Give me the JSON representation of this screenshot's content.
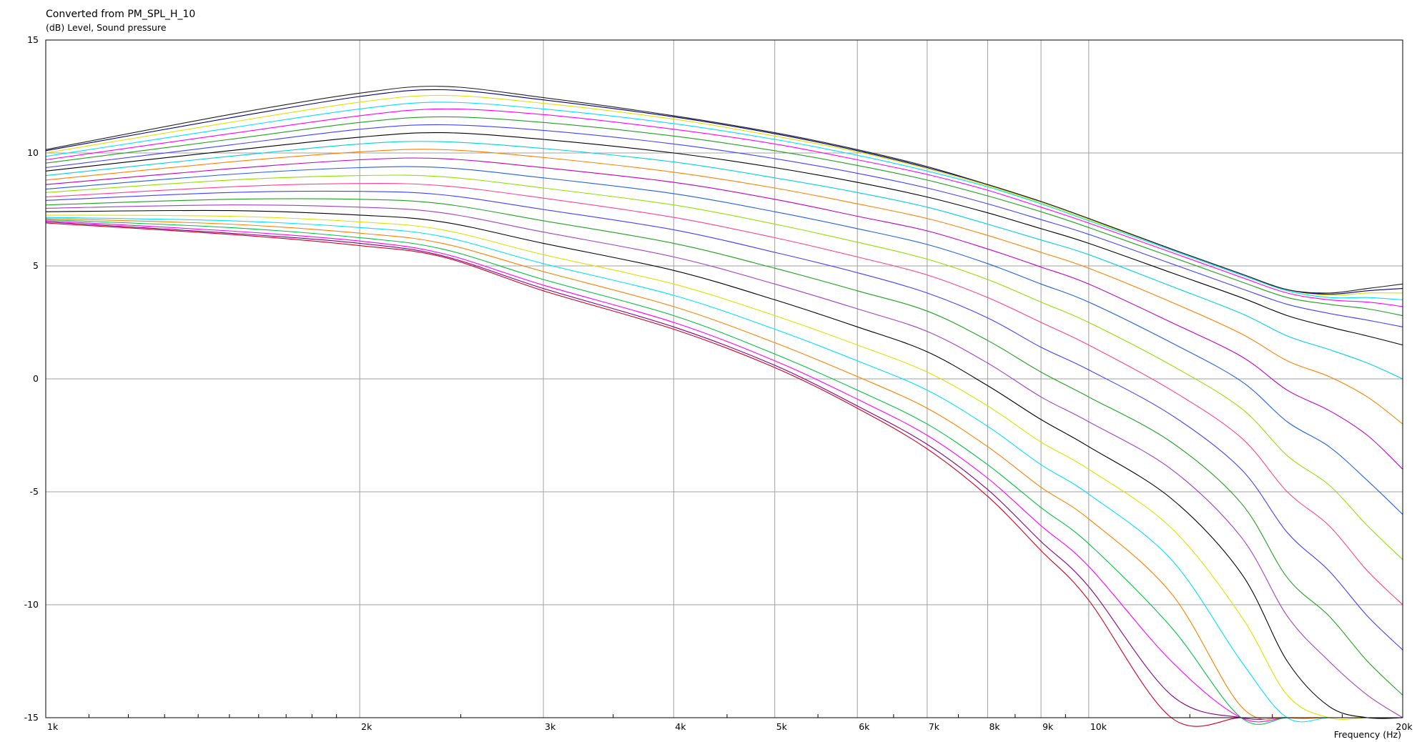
{
  "chart_data": {
    "type": "line",
    "title": "Converted from PM_SPL_H_10",
    "ylabel": "(dB)  Level, Sound pressure",
    "xlabel": "Frequency  (Hz)",
    "x_scale": "log",
    "xlim": [
      1000,
      20000
    ],
    "ylim": [
      -15,
      15
    ],
    "grid": true,
    "legend": "none",
    "x_ticks": [
      {
        "value": 1000,
        "label": "1k"
      },
      {
        "value": 2000,
        "label": "2k"
      },
      {
        "value": 3000,
        "label": "3k"
      },
      {
        "value": 4000,
        "label": "4k"
      },
      {
        "value": 5000,
        "label": "5k"
      },
      {
        "value": 6000,
        "label": "6k"
      },
      {
        "value": 7000,
        "label": "7k"
      },
      {
        "value": 8000,
        "label": "8k"
      },
      {
        "value": 9000,
        "label": "9k"
      },
      {
        "value": 10000,
        "label": "10k"
      },
      {
        "value": 20000,
        "label": "20k"
      }
    ],
    "y_ticks": [
      {
        "value": 15,
        "label": "15"
      },
      {
        "value": 10,
        "label": "10"
      },
      {
        "value": 5,
        "label": "5"
      },
      {
        "value": 0,
        "label": "0"
      },
      {
        "value": -5,
        "label": "-5"
      },
      {
        "value": -10,
        "label": "-10"
      },
      {
        "value": -15,
        "label": "-15"
      }
    ],
    "x": [
      1000,
      1500,
      2000,
      2400,
      3000,
      4000,
      5000,
      6000,
      7000,
      8000,
      9000,
      10000,
      12000,
      14000,
      15500,
      17000,
      18500,
      20000
    ],
    "series": [
      {
        "color": "#d00020",
        "values": [
          6.9,
          6.4,
          5.9,
          5.4,
          3.9,
          2.2,
          0.5,
          -1.3,
          -3.1,
          -5.2,
          -7.6,
          -9.8,
          -15.0,
          -15.0,
          -15.0,
          -15.0,
          -15.0,
          -15.0
        ]
      },
      {
        "color": "#800080",
        "values": [
          6.95,
          6.45,
          6.0,
          5.45,
          4.0,
          2.3,
          0.6,
          -1.2,
          -2.9,
          -4.9,
          -7.2,
          -9.2,
          -14.0,
          -15.0,
          -15.0,
          -15.0,
          -15.0,
          -15.0
        ]
      },
      {
        "color": "#ff00ff",
        "values": [
          7.0,
          6.55,
          6.1,
          5.55,
          4.15,
          2.5,
          0.8,
          -0.9,
          -2.5,
          -4.4,
          -6.5,
          -8.3,
          -12.5,
          -15.0,
          -15.0,
          -15.0,
          -15.0,
          -15.0
        ]
      },
      {
        "color": "#00c040",
        "values": [
          7.05,
          6.7,
          6.25,
          5.75,
          4.4,
          2.8,
          1.1,
          -0.5,
          -2.0,
          -3.8,
          -5.7,
          -7.3,
          -11.0,
          -15.0,
          -15.0,
          -15.0,
          -15.0,
          -15.0
        ]
      },
      {
        "color": "#ff8000",
        "values": [
          7.1,
          6.85,
          6.45,
          6.0,
          4.75,
          3.2,
          1.6,
          0.1,
          -1.3,
          -3.0,
          -4.8,
          -6.2,
          -9.5,
          -14.5,
          -15.0,
          -15.0,
          -15.0,
          -15.0
        ]
      },
      {
        "color": "#00e0ff",
        "values": [
          7.15,
          7.0,
          6.7,
          6.3,
          5.1,
          3.7,
          2.2,
          0.8,
          -0.5,
          -2.1,
          -3.8,
          -5.1,
          -8.0,
          -12.5,
          -15.0,
          -15.0,
          -15.0,
          -15.0
        ]
      },
      {
        "color": "#e0e000",
        "values": [
          7.25,
          7.2,
          6.95,
          6.6,
          5.5,
          4.2,
          2.8,
          1.5,
          0.3,
          -1.2,
          -2.8,
          -4.0,
          -6.6,
          -10.5,
          -14.0,
          -15.0,
          -15.0,
          -15.0
        ]
      },
      {
        "color": "#000000",
        "values": [
          7.4,
          7.45,
          7.25,
          6.95,
          6.0,
          4.8,
          3.5,
          2.3,
          1.2,
          -0.3,
          -1.8,
          -3.0,
          -5.3,
          -8.6,
          -12.5,
          -14.5,
          -15.0,
          -15.0
        ]
      },
      {
        "color": "#a040c0",
        "values": [
          7.55,
          7.7,
          7.6,
          7.35,
          6.5,
          5.4,
          4.2,
          3.1,
          2.1,
          0.7,
          -0.8,
          -1.9,
          -4.0,
          -7.0,
          -10.5,
          -12.5,
          -14.0,
          -15.0
        ]
      },
      {
        "color": "#20a020",
        "values": [
          7.7,
          7.95,
          7.95,
          7.75,
          7.0,
          6.0,
          4.9,
          3.9,
          3.0,
          1.7,
          0.3,
          -0.8,
          -2.8,
          -5.5,
          -8.8,
          -10.5,
          -12.5,
          -14.0
        ]
      },
      {
        "color": "#4040ff",
        "values": [
          7.9,
          8.25,
          8.3,
          8.15,
          7.5,
          6.6,
          5.6,
          4.7,
          3.8,
          2.7,
          1.4,
          0.4,
          -1.6,
          -4.0,
          -6.8,
          -8.5,
          -10.5,
          -12.0
        ]
      },
      {
        "color": "#ff4090",
        "values": [
          8.05,
          8.5,
          8.65,
          8.55,
          8.0,
          7.15,
          6.25,
          5.4,
          4.6,
          3.6,
          2.5,
          1.5,
          -0.5,
          -2.6,
          -5.0,
          -6.5,
          -8.5,
          -10.0
        ]
      },
      {
        "color": "#90e000",
        "values": [
          8.25,
          8.8,
          9.0,
          8.95,
          8.45,
          7.7,
          6.85,
          6.05,
          5.3,
          4.4,
          3.4,
          2.5,
          0.6,
          -1.3,
          -3.4,
          -4.7,
          -6.5,
          -8.0
        ]
      },
      {
        "color": "#2060e0",
        "values": [
          8.4,
          9.05,
          9.35,
          9.35,
          8.9,
          8.2,
          7.4,
          6.65,
          5.95,
          5.1,
          4.2,
          3.4,
          1.6,
          -0.1,
          -1.9,
          -3.0,
          -4.5,
          -6.0
        ]
      },
      {
        "color": "#c000c0",
        "values": [
          8.6,
          9.3,
          9.7,
          9.75,
          9.35,
          8.7,
          7.95,
          7.2,
          6.55,
          5.75,
          4.95,
          4.2,
          2.5,
          1.0,
          -0.5,
          -1.4,
          -2.5,
          -4.0
        ]
      },
      {
        "color": "#ff8000",
        "values": [
          8.8,
          9.6,
          10.05,
          10.15,
          9.8,
          9.15,
          8.45,
          7.75,
          7.1,
          6.35,
          5.6,
          4.9,
          3.4,
          2.0,
          0.8,
          0.1,
          -0.8,
          -2.0
        ]
      },
      {
        "color": "#00d0e0",
        "values": [
          9.0,
          9.85,
          10.4,
          10.5,
          10.2,
          9.6,
          8.9,
          8.25,
          7.6,
          6.85,
          6.15,
          5.5,
          4.1,
          2.9,
          1.9,
          1.3,
          0.7,
          0.0
        ]
      },
      {
        "color": "#000000",
        "values": [
          9.2,
          10.1,
          10.7,
          10.9,
          10.6,
          10.0,
          9.35,
          8.7,
          8.05,
          7.35,
          6.65,
          6.0,
          4.7,
          3.6,
          2.8,
          2.3,
          1.9,
          1.5
        ]
      },
      {
        "color": "#4040ff",
        "values": [
          9.35,
          10.35,
          11.05,
          11.25,
          11.0,
          10.4,
          9.75,
          9.1,
          8.45,
          7.75,
          7.05,
          6.4,
          5.1,
          4.0,
          3.3,
          2.9,
          2.6,
          2.3
        ]
      },
      {
        "color": "#20a020",
        "values": [
          9.55,
          10.6,
          11.35,
          11.6,
          11.35,
          10.75,
          10.1,
          9.45,
          8.8,
          8.1,
          7.4,
          6.7,
          5.4,
          4.3,
          3.6,
          3.3,
          3.1,
          2.8
        ]
      },
      {
        "color": "#ff00ff",
        "values": [
          9.7,
          10.85,
          11.65,
          11.95,
          11.7,
          11.05,
          10.4,
          9.7,
          9.05,
          8.35,
          7.6,
          6.9,
          5.6,
          4.5,
          3.8,
          3.5,
          3.4,
          3.2
        ]
      },
      {
        "color": "#00e0ff",
        "values": [
          9.85,
          11.1,
          11.95,
          12.25,
          11.95,
          11.3,
          10.6,
          9.9,
          9.2,
          8.5,
          7.75,
          7.0,
          5.7,
          4.6,
          3.9,
          3.6,
          3.6,
          3.5
        ]
      },
      {
        "color": "#e0e000",
        "values": [
          10.0,
          11.35,
          12.25,
          12.55,
          12.2,
          11.5,
          10.75,
          10.05,
          9.3,
          8.55,
          7.8,
          7.05,
          5.75,
          4.65,
          3.95,
          3.7,
          3.8,
          3.8
        ]
      },
      {
        "color": "#000080",
        "values": [
          10.1,
          11.55,
          12.5,
          12.8,
          12.35,
          11.6,
          10.85,
          10.1,
          9.35,
          8.6,
          7.85,
          7.1,
          5.75,
          4.65,
          3.95,
          3.75,
          3.9,
          4.0
        ]
      },
      {
        "color": "#202020",
        "values": [
          10.15,
          11.7,
          12.65,
          12.95,
          12.45,
          11.65,
          10.9,
          10.15,
          9.4,
          8.6,
          7.85,
          7.1,
          5.75,
          4.65,
          3.95,
          3.8,
          4.0,
          4.2
        ]
      }
    ]
  }
}
